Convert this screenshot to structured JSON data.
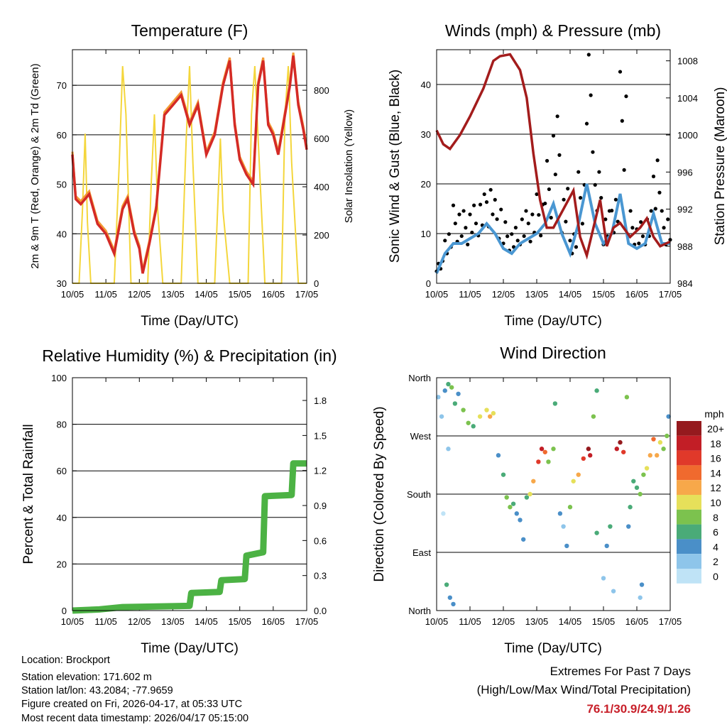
{
  "chart_data": [
    {
      "type": "line",
      "title": "Temperature (F)",
      "xlabel": "Time (Day/UTC)",
      "ylabel": "2m & 9m T (Red, Orange) & 2m Td (Green)",
      "y2label": "Solar Insolation (Yellow)",
      "xticks": [
        "10/05",
        "11/05",
        "12/05",
        "13/05",
        "14/05",
        "15/05",
        "16/05",
        "17/05"
      ],
      "xlim": [
        0,
        7
      ],
      "ylim": [
        30,
        77.2
      ],
      "yticks": [
        30,
        40,
        50,
        60,
        70
      ],
      "y2lim": [
        0,
        968
      ],
      "y2ticks": [
        0,
        200,
        400,
        600,
        800
      ],
      "colors": {
        "t2m": "#d42a26",
        "t9m": "#f39a35",
        "solar": "#f4d63c"
      },
      "series": [
        {
          "name": "2m T",
          "x": [
            0,
            0.1,
            0.25,
            0.5,
            0.75,
            1.0,
            1.25,
            1.5,
            1.65,
            1.85,
            2.0,
            2.1,
            2.3,
            2.5,
            2.75,
            3.0,
            3.25,
            3.5,
            3.75,
            4.0,
            4.25,
            4.5,
            4.7,
            4.85,
            5.0,
            5.2,
            5.4,
            5.55,
            5.7,
            5.85,
            6.0,
            6.15,
            6.3,
            6.5,
            6.6,
            6.75,
            6.9,
            7.0
          ],
          "y": [
            56,
            47,
            46,
            48,
            42,
            40,
            36,
            45,
            47,
            40,
            37,
            32,
            38,
            45,
            64,
            66,
            68,
            62,
            66,
            56,
            60,
            70,
            75,
            62,
            55,
            52,
            50,
            70,
            75,
            62,
            60,
            56,
            62,
            70,
            76,
            66,
            61,
            57
          ]
        },
        {
          "name": "Solar",
          "x": [
            0,
            0.2,
            0.3,
            0.38,
            0.45,
            0.55,
            1.0,
            1.25,
            1.4,
            1.5,
            1.6,
            1.75,
            2.0,
            2.25,
            2.35,
            2.45,
            2.55,
            2.7,
            3.0,
            3.25,
            3.4,
            3.5,
            3.6,
            3.75,
            4.0,
            4.25,
            4.35,
            4.42,
            4.5,
            4.7,
            5.0,
            5.25,
            5.35,
            5.45,
            5.55,
            5.75,
            6.0,
            6.25,
            6.35,
            6.45,
            6.55,
            6.75,
            7.0
          ],
          "y": [
            0,
            0,
            300,
            620,
            250,
            0,
            0,
            0,
            500,
            900,
            700,
            0,
            0,
            0,
            400,
            700,
            300,
            0,
            0,
            0,
            600,
            900,
            500,
            0,
            0,
            0,
            350,
            600,
            300,
            0,
            0,
            0,
            700,
            900,
            600,
            0,
            0,
            0,
            700,
            900,
            500,
            0,
            0
          ]
        }
      ]
    },
    {
      "type": "line",
      "title": "Winds (mph) & Pressure (mb)",
      "xlabel": "Time (Day/UTC)",
      "ylabel": "Sonic Wind & Gust (Blue, Black)",
      "y2label": "Station Pressure (Maroon)",
      "xticks": [
        "10/05",
        "11/05",
        "12/05",
        "13/05",
        "14/05",
        "15/05",
        "16/05",
        "17/05"
      ],
      "xlim": [
        0,
        7
      ],
      "ylim": [
        0,
        47
      ],
      "yticks": [
        0,
        10,
        20,
        30,
        40
      ],
      "y2lim": [
        984,
        1009.2
      ],
      "y2ticks": [
        984,
        988,
        992,
        996,
        1000,
        1004,
        1008
      ],
      "colors": {
        "wind": "#4a97d2",
        "gust": "#000000",
        "pressure": "#a31c1c"
      },
      "series": [
        {
          "name": "Wind",
          "x": [
            0,
            0.25,
            0.5,
            0.75,
            1,
            1.25,
            1.5,
            1.75,
            2,
            2.25,
            2.5,
            2.75,
            3,
            3.25,
            3.5,
            3.75,
            4,
            4.25,
            4.5,
            4.75,
            5,
            5.25,
            5.5,
            5.75,
            6,
            6.25,
            6.5,
            6.75,
            7
          ],
          "y": [
            2,
            6,
            8,
            8,
            9,
            10,
            12,
            10,
            7,
            6,
            8,
            9,
            10,
            12,
            16,
            10,
            6,
            12,
            20,
            12,
            8,
            10,
            18,
            8,
            7,
            8,
            14,
            8,
            8
          ]
        },
        {
          "name": "Gust",
          "x": [
            0,
            0.25,
            0.5,
            0.75,
            1,
            1.25,
            1.5,
            1.75,
            2,
            2.25,
            2.5,
            2.75,
            3,
            3.25,
            3.5,
            3.75,
            4,
            4.25,
            4.5,
            4.75,
            5,
            5.25,
            5.5,
            5.75,
            6,
            6.25,
            6.5,
            6.75,
            7
          ],
          "y": [
            4,
            10,
            14,
            13,
            14,
            16,
            19,
            15,
            11,
            10,
            13,
            14,
            16,
            22,
            30,
            17,
            10,
            20,
            44,
            20,
            13,
            17,
            38,
            13,
            11,
            13,
            25,
            13,
            12
          ]
        },
        {
          "name": "Pressure",
          "x": [
            0,
            0.2,
            0.4,
            0.7,
            1.0,
            1.4,
            1.7,
            1.9,
            2.2,
            2.5,
            2.7,
            2.9,
            3.1,
            3.3,
            3.5,
            3.8,
            4.1,
            4.3,
            4.5,
            4.7,
            4.9,
            5.1,
            5.3,
            5.5,
            5.8,
            6.1,
            6.3,
            6.5,
            6.7,
            7.0
          ],
          "y": [
            1000.5,
            999,
            998.5,
            1000,
            1002,
            1005,
            1008,
            1008.5,
            1008.7,
            1007,
            1004,
            998,
            993,
            990,
            990,
            992,
            994,
            989,
            987,
            990,
            993,
            988,
            990,
            990.5,
            989,
            990,
            991,
            989,
            988,
            988.5
          ]
        }
      ]
    },
    {
      "type": "line",
      "title": "Relative Humidity (%) & Precipitation (in)",
      "xlabel": "Time (Day/UTC)",
      "ylabel": "Percent & Total Rainfall",
      "xticks": [
        "10/05",
        "11/05",
        "12/05",
        "13/05",
        "14/05",
        "15/05",
        "16/05",
        "17/05"
      ],
      "xlim": [
        0,
        7
      ],
      "ylim": [
        0,
        100
      ],
      "yticks": [
        0,
        20,
        40,
        60,
        80,
        100
      ],
      "y2lim": [
        0,
        1.995
      ],
      "y2ticks": [
        "0.0",
        "0.3",
        "0.6",
        "0.9",
        "1.2",
        "1.5",
        "1.8"
      ],
      "colors": {
        "precip": "#4cb244"
      },
      "series": [
        {
          "name": "Total Precipitation",
          "x": [
            0,
            0.8,
            1.5,
            3.5,
            3.55,
            4.4,
            4.45,
            5.15,
            5.2,
            5.7,
            5.75,
            6.55,
            6.6,
            7.0
          ],
          "y": [
            0,
            0.01,
            0.03,
            0.04,
            0.15,
            0.16,
            0.26,
            0.27,
            0.47,
            0.5,
            0.98,
            0.99,
            1.26,
            1.26
          ]
        }
      ]
    },
    {
      "type": "scatter",
      "title": "Wind Direction",
      "xlabel": "Time (Day/UTC)",
      "ylabel": "Direction (Colored By Speed)",
      "xticks": [
        "10/05",
        "11/05",
        "12/05",
        "13/05",
        "14/05",
        "15/05",
        "16/05",
        "17/05"
      ],
      "xlim": [
        0,
        7
      ],
      "ylim": [
        0,
        360
      ],
      "ytick_values": [
        0,
        90,
        180,
        270,
        360
      ],
      "yticks": [
        "North",
        "East",
        "South",
        "West",
        "North"
      ],
      "legend": {
        "title": "mph",
        "labels": [
          "20+",
          "18",
          "16",
          "14",
          "12",
          "10",
          "8",
          "6",
          "4",
          "2",
          "0"
        ],
        "colors": [
          "#951a1e",
          "#c21e26",
          "#e0392a",
          "#f06a2e",
          "#f7a84a",
          "#e6e05a",
          "#7cc24e",
          "#4aab78",
          "#4a8fc8",
          "#8ec5ea",
          "#bfe3f6"
        ]
      },
      "points": [
        [
          0.05,
          330,
          3
        ],
        [
          0.15,
          300,
          2
        ],
        [
          0.25,
          340,
          4
        ],
        [
          0.35,
          350,
          7
        ],
        [
          0.45,
          345,
          8
        ],
        [
          0.55,
          320,
          6
        ],
        [
          0.65,
          335,
          4
        ],
        [
          0.3,
          40,
          6
        ],
        [
          0.4,
          20,
          5
        ],
        [
          0.5,
          10,
          4
        ],
        [
          0.35,
          250,
          2
        ],
        [
          0.2,
          150,
          1
        ],
        [
          0.8,
          310,
          8
        ],
        [
          0.95,
          290,
          9
        ],
        [
          1.1,
          285,
          7
        ],
        [
          1.3,
          300,
          10
        ],
        [
          1.5,
          310,
          11
        ],
        [
          1.6,
          300,
          12
        ],
        [
          1.7,
          305,
          10
        ],
        [
          1.85,
          240,
          5
        ],
        [
          2.0,
          210,
          6
        ],
        [
          2.1,
          175,
          9
        ],
        [
          2.2,
          160,
          8
        ],
        [
          2.3,
          165,
          6
        ],
        [
          2.4,
          150,
          5
        ],
        [
          2.5,
          140,
          4
        ],
        [
          2.6,
          110,
          5
        ],
        [
          2.7,
          175,
          7
        ],
        [
          2.8,
          180,
          10
        ],
        [
          2.9,
          200,
          13
        ],
        [
          3.05,
          230,
          16
        ],
        [
          3.15,
          250,
          18
        ],
        [
          3.25,
          245,
          15
        ],
        [
          3.35,
          230,
          8
        ],
        [
          3.5,
          250,
          9
        ],
        [
          3.55,
          320,
          7
        ],
        [
          3.7,
          150,
          4
        ],
        [
          3.8,
          130,
          3
        ],
        [
          3.9,
          100,
          4
        ],
        [
          4.0,
          160,
          8
        ],
        [
          4.1,
          200,
          11
        ],
        [
          4.25,
          210,
          13
        ],
        [
          4.4,
          235,
          17
        ],
        [
          4.55,
          250,
          20
        ],
        [
          4.6,
          240,
          19
        ],
        [
          4.7,
          300,
          9
        ],
        [
          4.8,
          340,
          7
        ],
        [
          4.8,
          120,
          6
        ],
        [
          5.0,
          50,
          3
        ],
        [
          5.1,
          100,
          5
        ],
        [
          5.2,
          130,
          7
        ],
        [
          5.3,
          30,
          2
        ],
        [
          5.4,
          250,
          18
        ],
        [
          5.5,
          260,
          20
        ],
        [
          5.6,
          245,
          16
        ],
        [
          5.7,
          330,
          8
        ],
        [
          5.75,
          130,
          4
        ],
        [
          5.8,
          160,
          6
        ],
        [
          5.9,
          200,
          7
        ],
        [
          6.0,
          190,
          6
        ],
        [
          6.1,
          180,
          8
        ],
        [
          6.2,
          210,
          9
        ],
        [
          6.3,
          220,
          11
        ],
        [
          6.4,
          240,
          13
        ],
        [
          6.5,
          265,
          15
        ],
        [
          6.6,
          240,
          12
        ],
        [
          6.7,
          260,
          10
        ],
        [
          6.8,
          250,
          9
        ],
        [
          6.9,
          270,
          8
        ],
        [
          6.95,
          300,
          5
        ],
        [
          6.15,
          40,
          4
        ],
        [
          6.1,
          20,
          3
        ]
      ]
    }
  ],
  "info": {
    "location": "Location: Brockport",
    "elevation": "Station elevation: 171.602 m",
    "latlon": "Station lat/lon: 43.2084; -77.9659",
    "created": "Figure created on Fri, 2026-04-17, at 05:33 UTC",
    "recent": "Most recent data timestamp: 2026/04/17 05:15:00"
  },
  "extremes": {
    "title": "Extremes For Past 7 Days",
    "subtitle": "(High/Low/Max Wind/Total Precipitation)",
    "values": "76.1/30.9/24.9/1.26"
  }
}
